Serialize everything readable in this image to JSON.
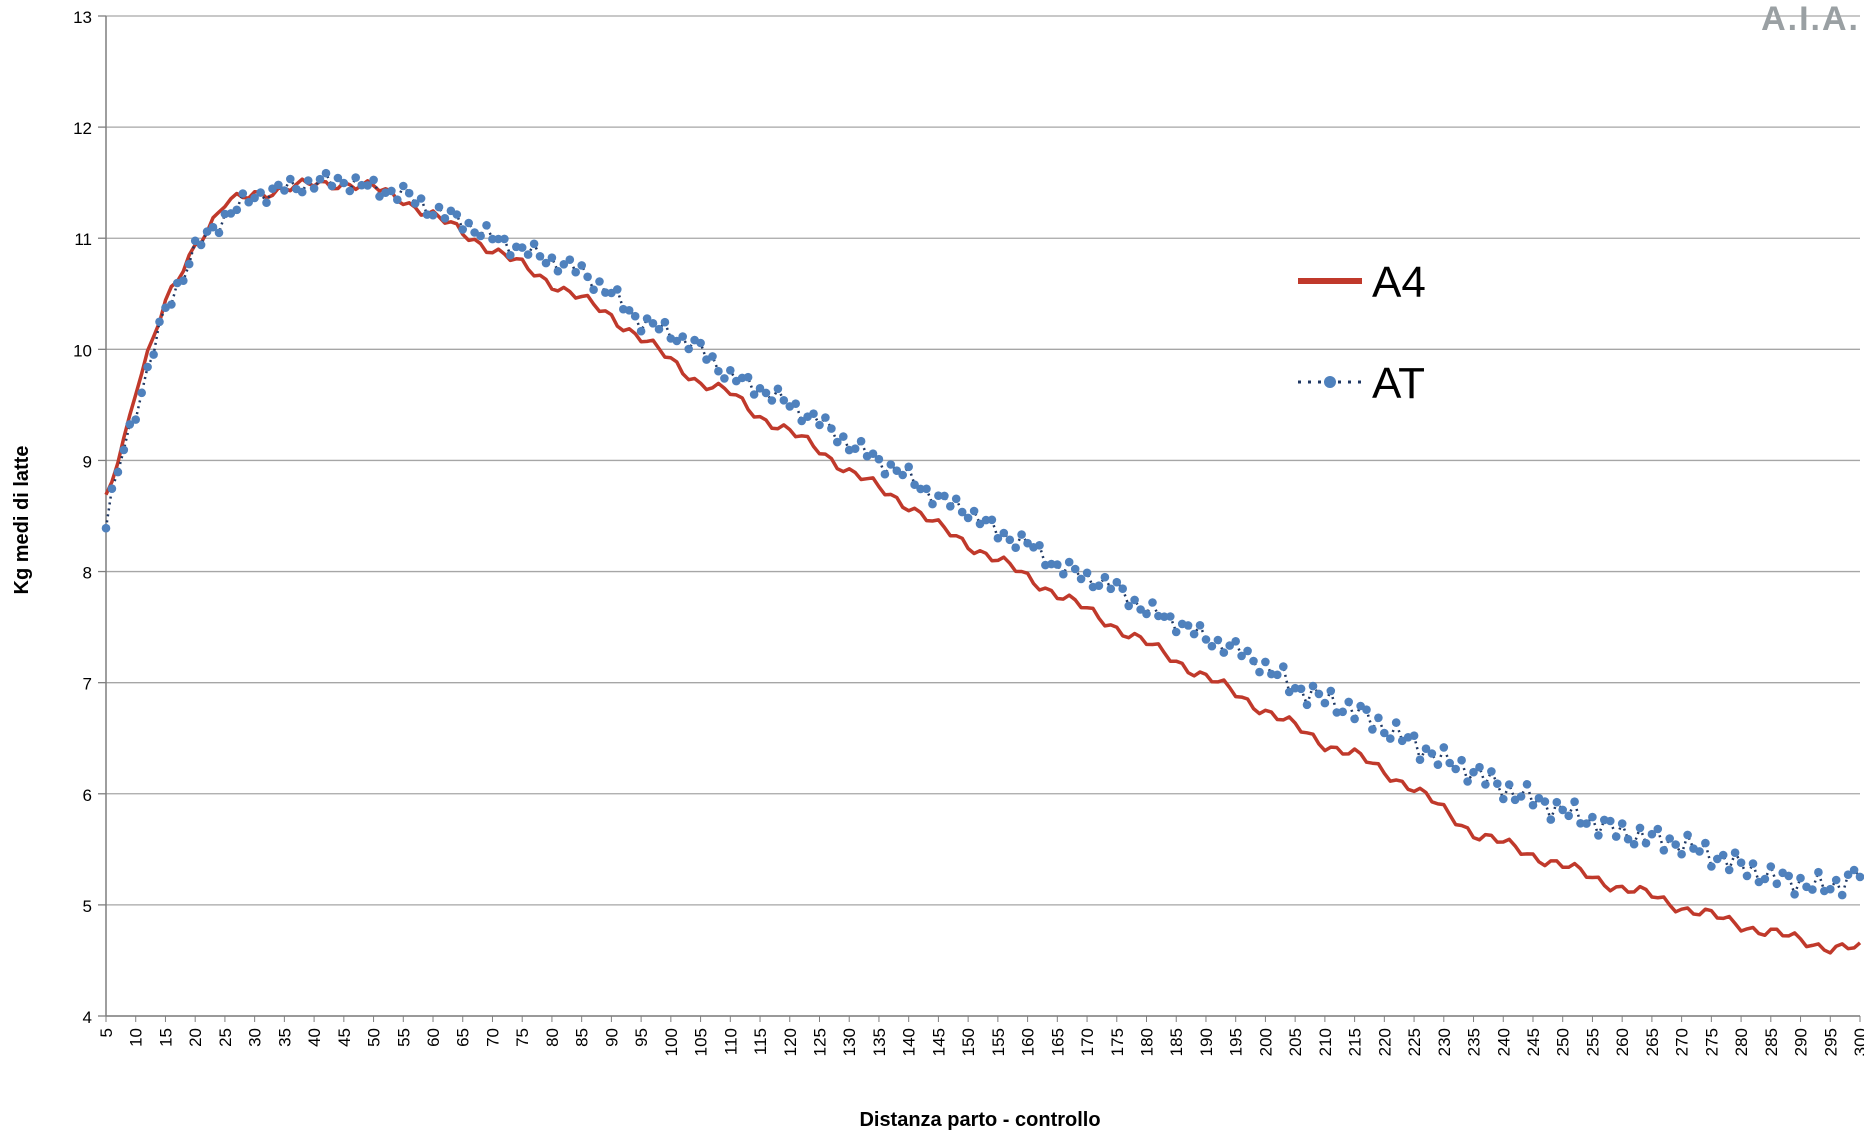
{
  "logo_text": "A.I.A.",
  "colors": {
    "A4": "#c0392b",
    "AT_dots": "#4f81bd",
    "AT_line": "#1f3864",
    "grid": "#a6a6a6"
  },
  "chart_data": {
    "type": "line",
    "xlabel": "Distanza parto - controllo",
    "ylabel": "Kg medi di latte",
    "ylim": [
      4,
      13
    ],
    "yticks": [
      4,
      5,
      6,
      7,
      8,
      9,
      10,
      11,
      12,
      13
    ],
    "xrange": [
      5,
      300
    ],
    "xtick_step": 5,
    "grid": "horizontal",
    "legend_position": "right",
    "series": [
      {
        "name": "A4",
        "style": "solid",
        "points": [
          [
            5,
            8.65
          ],
          [
            8,
            9.2
          ],
          [
            10,
            9.65
          ],
          [
            15,
            10.4
          ],
          [
            20,
            10.95
          ],
          [
            25,
            11.3
          ],
          [
            30,
            11.4
          ],
          [
            35,
            11.45
          ],
          [
            40,
            11.48
          ],
          [
            45,
            11.5
          ],
          [
            50,
            11.45
          ],
          [
            55,
            11.35
          ],
          [
            60,
            11.2
          ],
          [
            65,
            11.05
          ],
          [
            70,
            10.9
          ],
          [
            75,
            10.75
          ],
          [
            80,
            10.6
          ],
          [
            85,
            10.45
          ],
          [
            90,
            10.3
          ],
          [
            95,
            10.1
          ],
          [
            100,
            9.9
          ],
          [
            105,
            9.7
          ],
          [
            110,
            9.6
          ],
          [
            115,
            9.4
          ],
          [
            120,
            9.25
          ],
          [
            125,
            9.1
          ],
          [
            130,
            8.9
          ],
          [
            135,
            8.75
          ],
          [
            140,
            8.6
          ],
          [
            145,
            8.4
          ],
          [
            150,
            8.25
          ],
          [
            155,
            8.1
          ],
          [
            160,
            7.95
          ],
          [
            165,
            7.8
          ],
          [
            170,
            7.65
          ],
          [
            175,
            7.5
          ],
          [
            180,
            7.35
          ],
          [
            185,
            7.2
          ],
          [
            190,
            7.05
          ],
          [
            195,
            6.9
          ],
          [
            200,
            6.75
          ],
          [
            205,
            6.6
          ],
          [
            210,
            6.45
          ],
          [
            215,
            6.35
          ],
          [
            220,
            6.2
          ],
          [
            225,
            6.05
          ],
          [
            230,
            5.85
          ],
          [
            235,
            5.65
          ],
          [
            240,
            5.55
          ],
          [
            245,
            5.45
          ],
          [
            250,
            5.35
          ],
          [
            255,
            5.25
          ],
          [
            260,
            5.15
          ],
          [
            265,
            5.08
          ],
          [
            270,
            4.98
          ],
          [
            275,
            4.9
          ],
          [
            280,
            4.82
          ],
          [
            285,
            4.75
          ],
          [
            290,
            4.68
          ],
          [
            295,
            4.62
          ],
          [
            300,
            4.6
          ]
        ]
      },
      {
        "name": "AT",
        "style": "dotted-markers",
        "points": [
          [
            5,
            8.45
          ],
          [
            8,
            9.1
          ],
          [
            10,
            9.45
          ],
          [
            15,
            10.35
          ],
          [
            20,
            10.9
          ],
          [
            25,
            11.2
          ],
          [
            30,
            11.38
          ],
          [
            35,
            11.45
          ],
          [
            40,
            11.5
          ],
          [
            45,
            11.52
          ],
          [
            50,
            11.45
          ],
          [
            55,
            11.4
          ],
          [
            60,
            11.25
          ],
          [
            65,
            11.15
          ],
          [
            70,
            11.0
          ],
          [
            75,
            10.9
          ],
          [
            80,
            10.8
          ],
          [
            85,
            10.7
          ],
          [
            90,
            10.5
          ],
          [
            95,
            10.25
          ],
          [
            100,
            10.15
          ],
          [
            105,
            10.0
          ],
          [
            110,
            9.75
          ],
          [
            115,
            9.65
          ],
          [
            120,
            9.5
          ],
          [
            125,
            9.35
          ],
          [
            130,
            9.15
          ],
          [
            135,
            9.0
          ],
          [
            140,
            8.85
          ],
          [
            145,
            8.65
          ],
          [
            150,
            8.55
          ],
          [
            155,
            8.35
          ],
          [
            160,
            8.25
          ],
          [
            165,
            8.05
          ],
          [
            170,
            7.95
          ],
          [
            175,
            7.85
          ],
          [
            180,
            7.65
          ],
          [
            185,
            7.55
          ],
          [
            190,
            7.4
          ],
          [
            195,
            7.3
          ],
          [
            200,
            7.15
          ],
          [
            205,
            6.95
          ],
          [
            210,
            6.85
          ],
          [
            215,
            6.75
          ],
          [
            220,
            6.6
          ],
          [
            225,
            6.45
          ],
          [
            230,
            6.3
          ],
          [
            235,
            6.2
          ],
          [
            240,
            6.05
          ],
          [
            245,
            5.95
          ],
          [
            250,
            5.85
          ],
          [
            255,
            5.75
          ],
          [
            260,
            5.65
          ],
          [
            265,
            5.6
          ],
          [
            270,
            5.55
          ],
          [
            275,
            5.45
          ],
          [
            280,
            5.35
          ],
          [
            285,
            5.25
          ],
          [
            290,
            5.2
          ],
          [
            295,
            5.15
          ],
          [
            300,
            5.3
          ]
        ]
      }
    ]
  }
}
